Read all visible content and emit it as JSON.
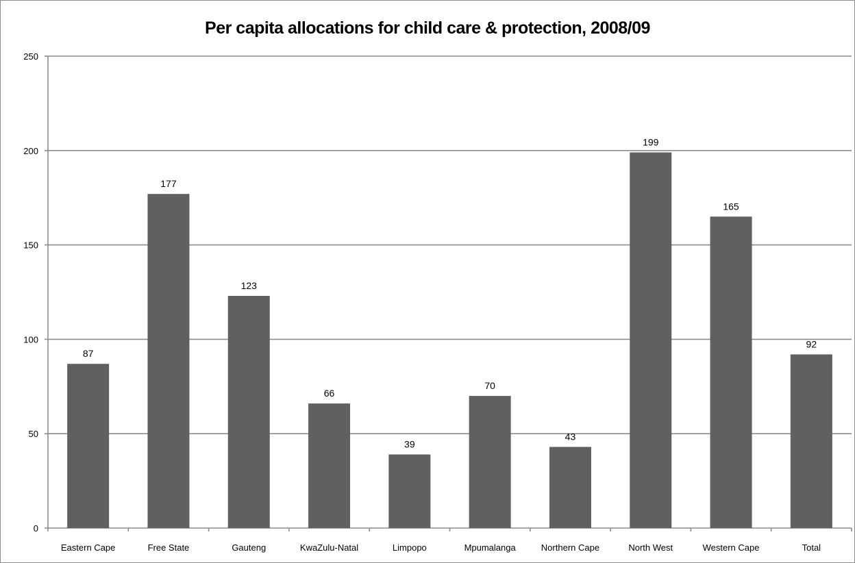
{
  "chart_data": {
    "type": "bar",
    "title": "Per capita allocations for child care & protection, 2008/09",
    "xlabel": "",
    "ylabel": "",
    "categories": [
      "Eastern Cape",
      "Free State",
      "Gauteng",
      "KwaZulu-Natal",
      "Limpopo",
      "Mpumalanga",
      "Northern Cape",
      "North West",
      "Western Cape",
      "Total"
    ],
    "values": [
      87,
      177,
      123,
      66,
      39,
      70,
      43,
      199,
      165,
      92
    ],
    "ylim": [
      0,
      250
    ],
    "yticks": [
      0,
      50,
      100,
      150,
      200,
      250
    ],
    "grid": true,
    "legend": "none",
    "data_labels": true,
    "bar_color": "#606060",
    "grid_color": "#8c8c8c"
  }
}
